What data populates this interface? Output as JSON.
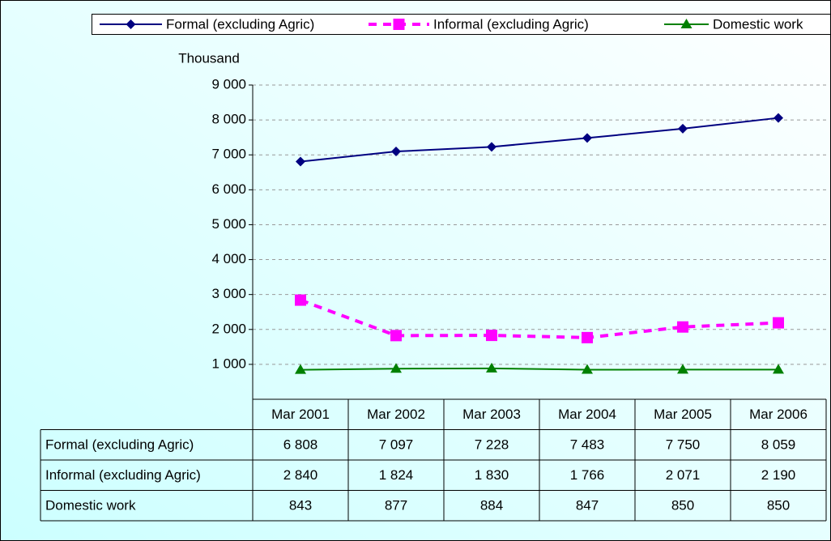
{
  "chart_data": {
    "type": "line",
    "y_label": "Thousand",
    "categories": [
      "Mar 2001",
      "Mar 2002",
      "Mar 2003",
      "Mar 2004",
      "Mar 2005",
      "Mar 2006"
    ],
    "series": [
      {
        "name": "Formal (excluding Agric)",
        "color": "#000080",
        "marker": "diamond",
        "dash": false,
        "values": [
          6808,
          7097,
          7228,
          7483,
          7750,
          8059
        ],
        "value_labels": [
          "6 808",
          "7 097",
          "7 228",
          "7 483",
          "7 750",
          "8 059"
        ]
      },
      {
        "name": "Informal (excluding Agric)",
        "color": "#ff00ff",
        "marker": "square",
        "dash": true,
        "values": [
          2840,
          1824,
          1830,
          1766,
          2071,
          2190
        ],
        "value_labels": [
          "2 840",
          "1 824",
          "1 830",
          "1 766",
          "2 071",
          "2 190"
        ]
      },
      {
        "name": "Domestic work",
        "color": "#008000",
        "marker": "triangle",
        "dash": false,
        "values": [
          843,
          877,
          884,
          847,
          850,
          850
        ]
      }
    ],
    "ylim": [
      0,
      9000
    ],
    "yticks": [
      {
        "value": 1000,
        "label": "1 000"
      },
      {
        "value": 2000,
        "label": "2 000"
      },
      {
        "value": 3000,
        "label": "3 000"
      },
      {
        "value": 4000,
        "label": "4 000"
      },
      {
        "value": 5000,
        "label": "5 000"
      },
      {
        "value": 6000,
        "label": "6 000"
      },
      {
        "value": 7000,
        "label": "7 000"
      },
      {
        "value": 8000,
        "label": "8 000"
      },
      {
        "value": 9000,
        "label": "9 000"
      }
    ],
    "grid": true,
    "legend": "top"
  }
}
